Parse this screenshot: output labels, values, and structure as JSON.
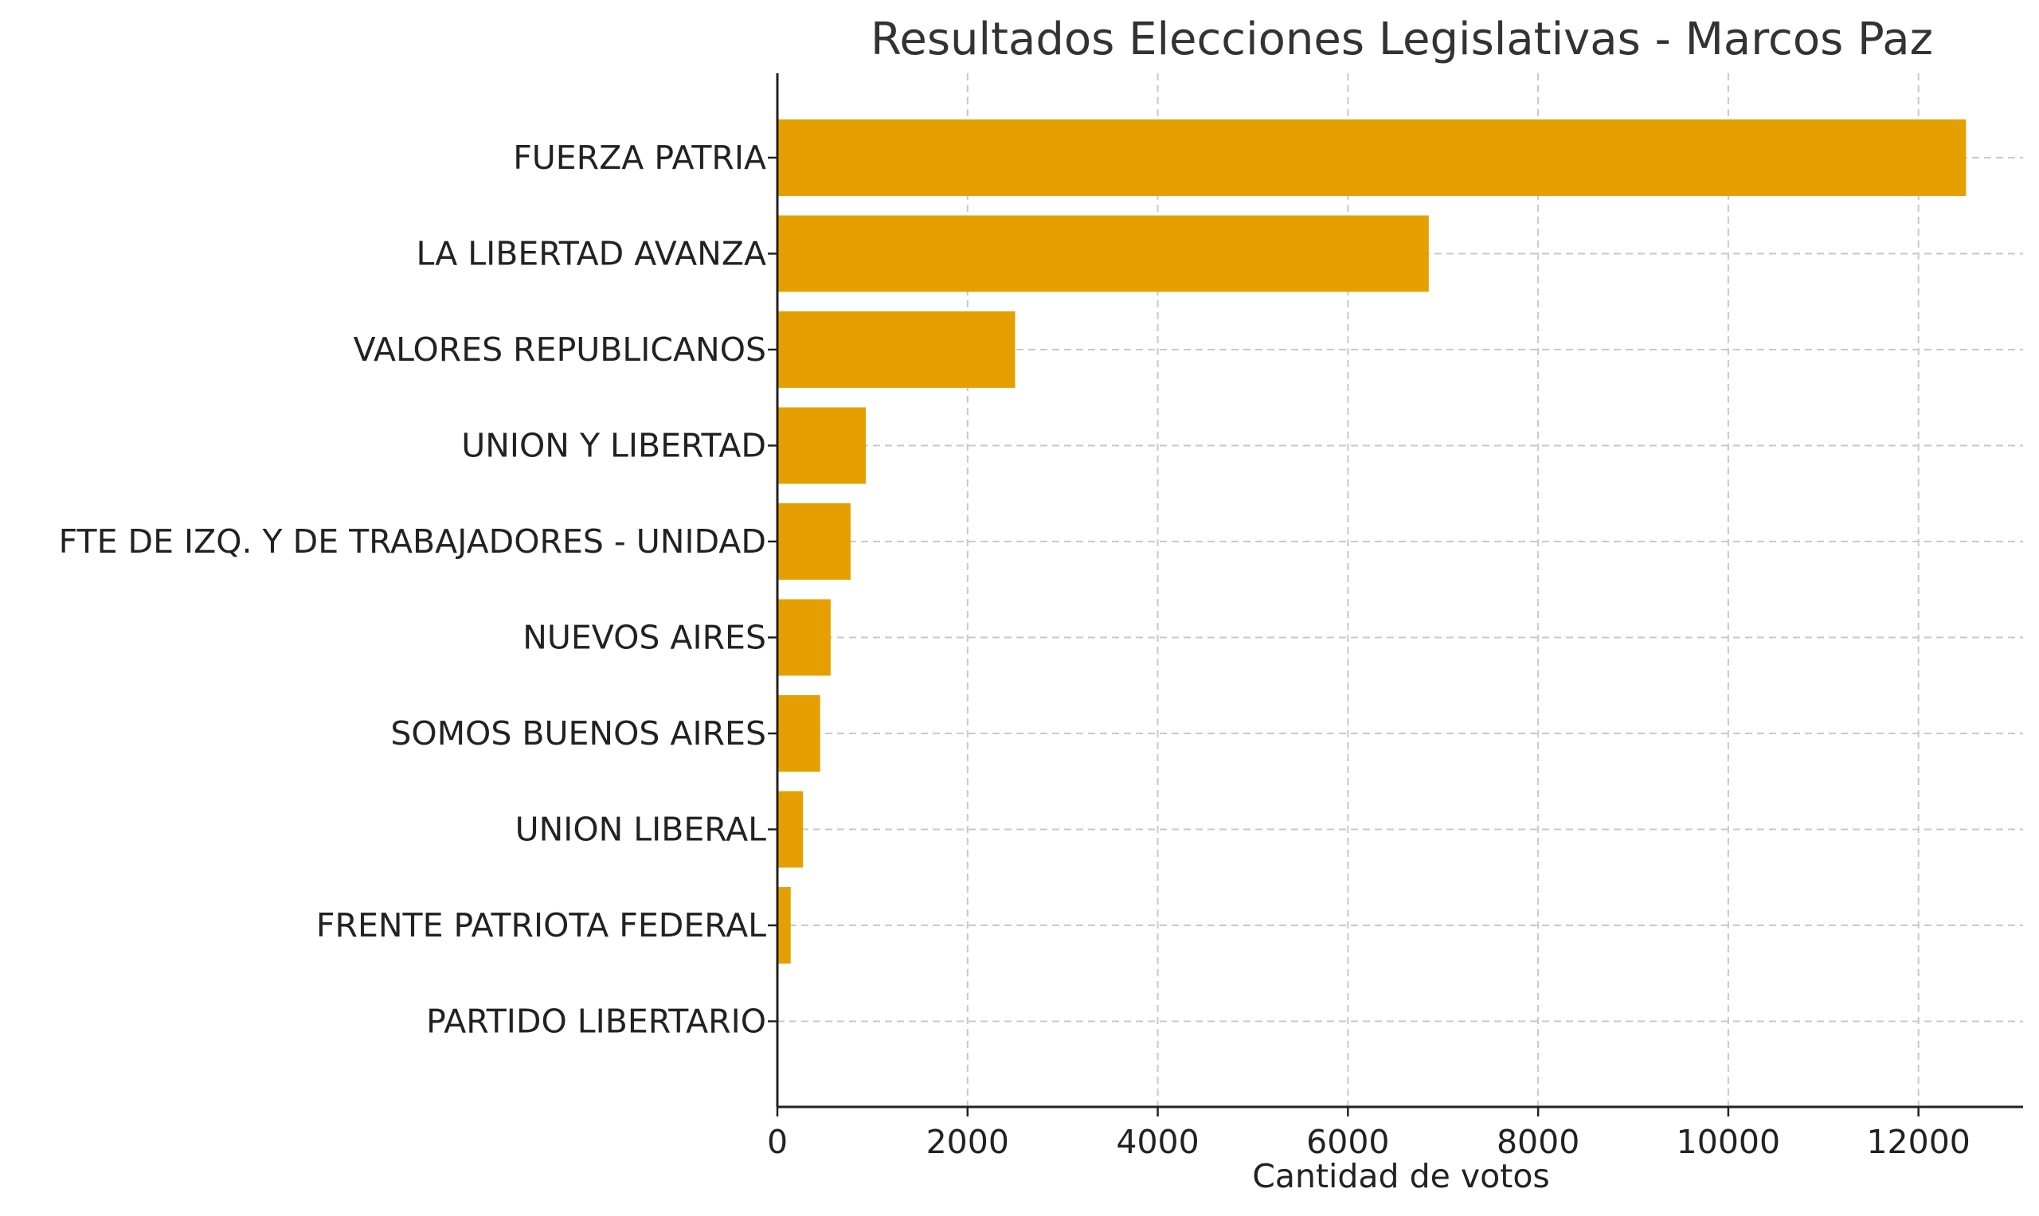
{
  "chart_data": {
    "type": "bar",
    "orientation": "horizontal",
    "title": "Resultados Elecciones Legislativas - Marcos Paz",
    "xlabel": "Cantidad de votos",
    "ylabel": "",
    "xlim": [
      0,
      13100
    ],
    "xticks": [
      0,
      2000,
      4000,
      6000,
      8000,
      10000,
      12000
    ],
    "grid": true,
    "bar_color": "#E5A000",
    "categories": [
      "FUERZA PATRIA",
      "LA LIBERTAD AVANZA",
      "VALORES REPUBLICANOS",
      "UNION Y LIBERTAD",
      "FTE DE IZQ. Y DE TRABAJADORES - UNIDAD",
      "NUEVOS AIRES",
      "SOMOS BUENOS AIRES",
      "UNION LIBERAL",
      "FRENTE PATRIOTA FEDERAL",
      "PARTIDO LIBERTARIO"
    ],
    "values": [
      12500,
      6850,
      2500,
      930,
      770,
      560,
      450,
      270,
      140,
      0
    ]
  }
}
